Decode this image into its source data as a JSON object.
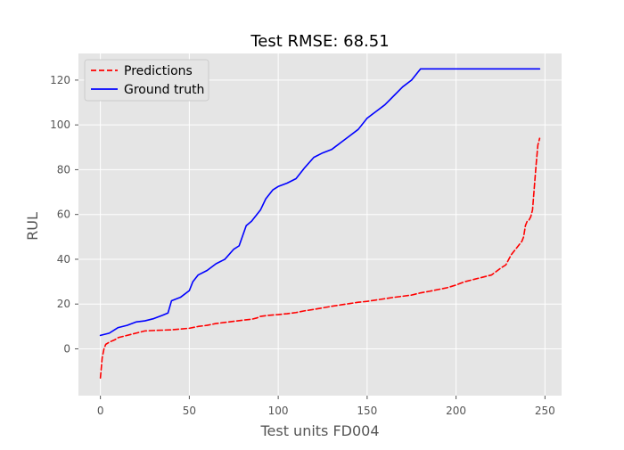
{
  "chart_data": {
    "type": "line",
    "title": "Test RMSE: 68.51",
    "xlabel": "Test units FD004",
    "ylabel": "RUL",
    "xlim": [
      -12.35,
      259.35
    ],
    "ylim": [
      -20.9,
      131.9
    ],
    "xticks": [
      0,
      50,
      100,
      150,
      200,
      250
    ],
    "yticks": [
      0,
      20,
      40,
      60,
      80,
      100,
      120
    ],
    "grid": true,
    "legend_position": "top-left",
    "series": [
      {
        "name": "Predictions",
        "color": "#ff0000",
        "style": "dashed",
        "points": [
          [
            0,
            -13
          ],
          [
            1,
            -4
          ],
          [
            2,
            0
          ],
          [
            3,
            2
          ],
          [
            5,
            3
          ],
          [
            8,
            4
          ],
          [
            10,
            5
          ],
          [
            15,
            6
          ],
          [
            20,
            7
          ],
          [
            25,
            8
          ],
          [
            30,
            8.2
          ],
          [
            40,
            8.5
          ],
          [
            50,
            9.2
          ],
          [
            55,
            10
          ],
          [
            60,
            10.5
          ],
          [
            65,
            11.3
          ],
          [
            70,
            11.8
          ],
          [
            75,
            12.3
          ],
          [
            80,
            12.8
          ],
          [
            85,
            13.2
          ],
          [
            88,
            13.8
          ],
          [
            90,
            14.5
          ],
          [
            95,
            15
          ],
          [
            100,
            15.3
          ],
          [
            105,
            15.7
          ],
          [
            110,
            16.2
          ],
          [
            115,
            17
          ],
          [
            120,
            17.6
          ],
          [
            125,
            18.3
          ],
          [
            130,
            19
          ],
          [
            135,
            19.6
          ],
          [
            140,
            20.2
          ],
          [
            145,
            20.8
          ],
          [
            150,
            21.2
          ],
          [
            155,
            21.8
          ],
          [
            160,
            22.4
          ],
          [
            165,
            23
          ],
          [
            170,
            23.5
          ],
          [
            175,
            24
          ],
          [
            180,
            25
          ],
          [
            185,
            25.7
          ],
          [
            190,
            26.5
          ],
          [
            195,
            27.3
          ],
          [
            200,
            28.5
          ],
          [
            205,
            30
          ],
          [
            210,
            31
          ],
          [
            215,
            32
          ],
          [
            220,
            33
          ],
          [
            225,
            36
          ],
          [
            228,
            37.5
          ],
          [
            231,
            42
          ],
          [
            235,
            46
          ],
          [
            237,
            48
          ],
          [
            238,
            50
          ],
          [
            239,
            55
          ],
          [
            240,
            57
          ],
          [
            241,
            57.5
          ],
          [
            242,
            59
          ],
          [
            243,
            62
          ],
          [
            244,
            72
          ],
          [
            245,
            82
          ],
          [
            246,
            91
          ],
          [
            247,
            94
          ]
        ]
      },
      {
        "name": "Ground truth",
        "color": "#0000ff",
        "style": "solid",
        "points": [
          [
            0,
            6
          ],
          [
            5,
            7
          ],
          [
            10,
            9.5
          ],
          [
            15,
            10.5
          ],
          [
            20,
            12
          ],
          [
            25,
            12.5
          ],
          [
            30,
            13.5
          ],
          [
            35,
            15
          ],
          [
            38,
            16
          ],
          [
            40,
            21.5
          ],
          [
            45,
            23
          ],
          [
            50,
            26
          ],
          [
            52,
            30
          ],
          [
            55,
            33
          ],
          [
            60,
            35
          ],
          [
            65,
            38
          ],
          [
            70,
            40
          ],
          [
            75,
            44.5
          ],
          [
            78,
            46
          ],
          [
            82,
            55
          ],
          [
            85,
            57
          ],
          [
            90,
            62
          ],
          [
            93,
            67
          ],
          [
            97,
            71
          ],
          [
            100,
            72.5
          ],
          [
            105,
            74
          ],
          [
            110,
            76
          ],
          [
            115,
            81
          ],
          [
            120,
            85.5
          ],
          [
            125,
            87.5
          ],
          [
            130,
            89
          ],
          [
            135,
            92
          ],
          [
            140,
            95
          ],
          [
            145,
            98
          ],
          [
            150,
            103
          ],
          [
            155,
            106
          ],
          [
            160,
            109
          ],
          [
            165,
            113
          ],
          [
            170,
            117
          ],
          [
            175,
            120
          ],
          [
            180,
            125
          ],
          [
            190,
            125
          ],
          [
            200,
            125
          ],
          [
            220,
            125
          ],
          [
            240,
            125
          ],
          [
            247,
            125
          ]
        ]
      }
    ]
  }
}
